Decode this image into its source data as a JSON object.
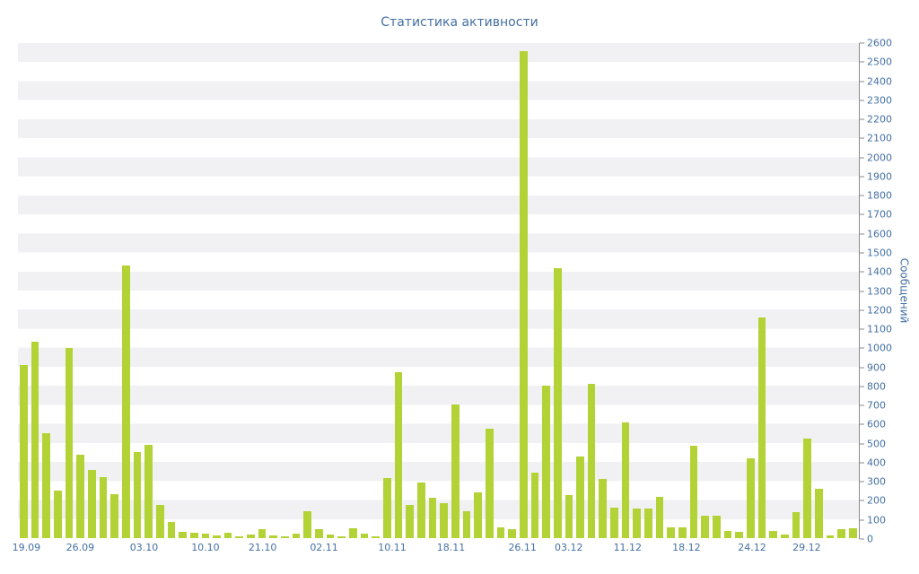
{
  "chart_data": {
    "type": "bar",
    "title": "Статистика активности",
    "ylabel": "Сообщений",
    "xlabel": "",
    "ylim": [
      0,
      2600
    ],
    "y_tick_step": 100,
    "grid": "striped-bands",
    "legend": "none",
    "bar_color": "#b3d236",
    "stripe_color": "#f1f1f4",
    "axis_text_color": "#4470a3",
    "y_ticks": [
      0,
      100,
      200,
      300,
      400,
      500,
      600,
      700,
      800,
      900,
      1000,
      1100,
      1200,
      1300,
      1400,
      1500,
      1600,
      1700,
      1800,
      1900,
      2000,
      2100,
      2200,
      2300,
      2400,
      2500,
      2600
    ],
    "values": [
      910,
      1030,
      550,
      250,
      1000,
      440,
      360,
      320,
      230,
      1430,
      450,
      490,
      175,
      85,
      35,
      30,
      25,
      15,
      30,
      10,
      20,
      45,
      15,
      10,
      25,
      140,
      45,
      20,
      10,
      50,
      25,
      10,
      315,
      870,
      175,
      290,
      210,
      185,
      700,
      140,
      240,
      575,
      55,
      45,
      2560,
      345,
      800,
      1420,
      225,
      430,
      810,
      310,
      160,
      610,
      155,
      155,
      215,
      55,
      55,
      485,
      120,
      120,
      40,
      35,
      420,
      1160,
      40,
      20,
      135,
      525,
      260,
      15,
      45,
      50
    ],
    "x_ticks": [
      {
        "label": "19.09",
        "position_percent": 1.0
      },
      {
        "label": "26.09",
        "position_percent": 7.4
      },
      {
        "label": "03.10",
        "position_percent": 15.0
      },
      {
        "label": "10.10",
        "position_percent": 22.3
      },
      {
        "label": "21.10",
        "position_percent": 29.1
      },
      {
        "label": "02.11",
        "position_percent": 36.4
      },
      {
        "label": "10.11",
        "position_percent": 44.5
      },
      {
        "label": "18.11",
        "position_percent": 51.5
      },
      {
        "label": "26.11",
        "position_percent": 60.0
      },
      {
        "label": "03.12",
        "position_percent": 65.5
      },
      {
        "label": "11.12",
        "position_percent": 72.5
      },
      {
        "label": "18.12",
        "position_percent": 79.5
      },
      {
        "label": "24.12",
        "position_percent": 87.3
      },
      {
        "label": "29.12",
        "position_percent": 93.8
      }
    ]
  }
}
